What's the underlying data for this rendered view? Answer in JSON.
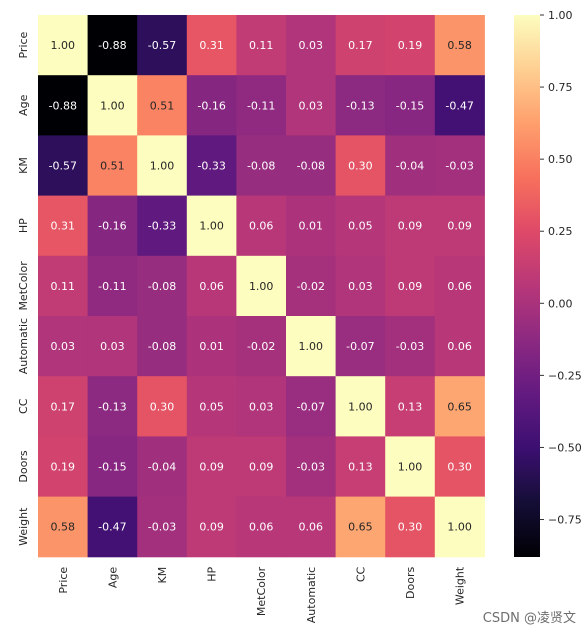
{
  "chart_data": {
    "type": "heatmap",
    "colormap": "magma",
    "vmin": -0.88,
    "vmax": 1.0,
    "rows": [
      "Price",
      "Age",
      "KM",
      "HP",
      "MetColor",
      "Automatic",
      "CC",
      "Doors",
      "Weight"
    ],
    "cols": [
      "Price",
      "Age",
      "KM",
      "HP",
      "MetColor",
      "Automatic",
      "CC",
      "Doors",
      "Weight"
    ],
    "values": [
      [
        1.0,
        -0.88,
        -0.57,
        0.31,
        0.11,
        0.03,
        0.17,
        0.19,
        0.58
      ],
      [
        -0.88,
        1.0,
        0.51,
        -0.16,
        -0.11,
        0.03,
        -0.13,
        -0.15,
        -0.47
      ],
      [
        -0.57,
        0.51,
        1.0,
        -0.33,
        -0.08,
        -0.08,
        0.3,
        -0.04,
        -0.03
      ],
      [
        0.31,
        -0.16,
        -0.33,
        1.0,
        0.06,
        0.01,
        0.05,
        0.09,
        0.09
      ],
      [
        0.11,
        -0.11,
        -0.08,
        0.06,
        1.0,
        -0.02,
        0.03,
        0.09,
        0.06
      ],
      [
        0.03,
        0.03,
        -0.08,
        0.01,
        -0.02,
        1.0,
        -0.07,
        -0.03,
        0.06
      ],
      [
        0.17,
        -0.13,
        0.3,
        0.05,
        0.03,
        -0.07,
        1.0,
        0.13,
        0.65
      ],
      [
        0.19,
        -0.15,
        -0.04,
        0.09,
        0.09,
        -0.03,
        0.13,
        1.0,
        0.3
      ],
      [
        0.58,
        -0.47,
        -0.03,
        0.09,
        0.06,
        0.06,
        0.65,
        0.3,
        1.0
      ]
    ],
    "colorbar_ticks": [
      1.0,
      0.75,
      0.5,
      0.25,
      0.0,
      -0.25,
      -0.5,
      -0.75
    ],
    "colorbar_tick_labels": [
      "1.00",
      "0.75",
      "0.50",
      "0.25",
      "0.00",
      "−0.25",
      "−0.50",
      "−0.75"
    ],
    "annotations": "values shown in each cell with 2 decimals"
  },
  "watermark": "CSDN @凌贤文"
}
